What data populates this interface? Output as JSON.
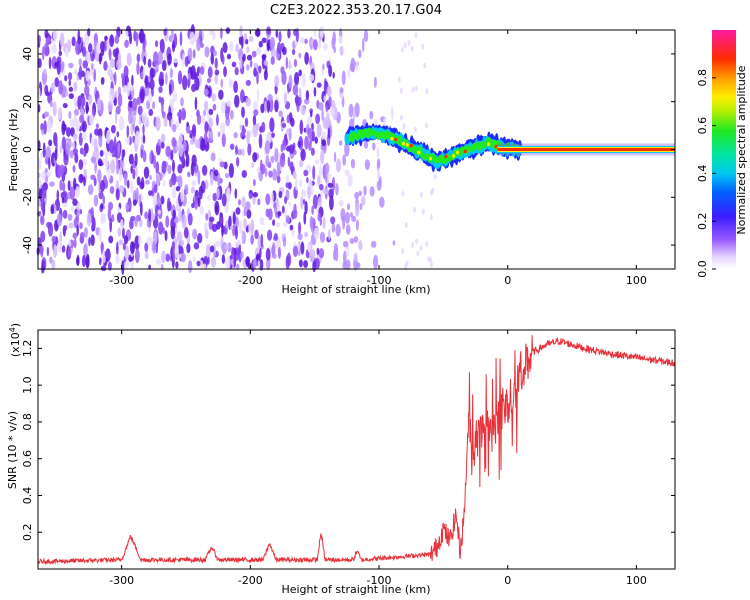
{
  "title": "C2E3.2022.353.20.17.G04",
  "chart_data": [
    {
      "type": "heatmap",
      "xlabel": "Height of straight line (km)",
      "ylabel": "Frequency (Hz)",
      "xlim": [
        -365,
        130
      ],
      "ylim": [
        -50,
        50
      ],
      "xticks": [
        -300,
        -200,
        -100,
        0,
        100
      ],
      "xtick_labels": [
        "-300",
        "-200",
        "-100",
        "0",
        "100"
      ],
      "yticks": [
        -40,
        -20,
        0,
        20,
        40
      ],
      "ytick_labels": [
        "-40",
        "-20",
        "0",
        "20",
        "40"
      ],
      "colorbar": {
        "label": "Normalized spectral amplitude",
        "range": [
          0,
          1
        ],
        "ticks": [
          0.0,
          0.2,
          0.4,
          0.6,
          0.8
        ],
        "tick_labels": [
          "0.0",
          "0.2",
          "0.4",
          "0.6",
          "0.8"
        ],
        "colormap": "rainbow (white-violet-blue-cyan-green-yellow-red-magenta)"
      },
      "noise_region_x": [
        -365,
        -85
      ],
      "ridge": {
        "x": [
          -125,
          -115,
          -105,
          -95,
          -85,
          -75,
          -65,
          -55,
          -45,
          -35,
          -25,
          -15,
          -5,
          5,
          15,
          130
        ],
        "freq": [
          5,
          6,
          7,
          6,
          4,
          1,
          -2,
          -5,
          -3,
          -1,
          1,
          3,
          1,
          0,
          0,
          0
        ]
      },
      "grid": false
    },
    {
      "type": "line",
      "xlabel": "Height of straight line (km)",
      "ylabel": "SNR (10 * v/v)",
      "y_scale_note": "(x10^4)",
      "y_scale_base": "(x10",
      "y_scale_exp": "4",
      "y_scale_close": ")",
      "xlim": [
        -365,
        130
      ],
      "ylim": [
        0,
        1.3
      ],
      "xticks": [
        -300,
        -200,
        -100,
        0,
        100
      ],
      "xtick_labels": [
        "-300",
        "-200",
        "-100",
        "0",
        "100"
      ],
      "yticks": [
        0.2,
        0.4,
        0.6,
        0.8,
        1.0,
        1.2
      ],
      "ytick_labels": [
        "0.2",
        "0.4",
        "0.6",
        "0.8",
        "1.0",
        "1.2"
      ],
      "series_color": "#e8323a",
      "envelope": {
        "x": [
          -365,
          -300,
          -293,
          -285,
          -235,
          -230,
          -225,
          -190,
          -185,
          -180,
          -148,
          -145,
          -142,
          -120,
          -117,
          -114,
          -60,
          -55,
          -50,
          -45,
          -40,
          -37,
          -34,
          -30,
          -28,
          -25,
          -20,
          -10,
          0,
          10,
          20,
          30,
          40,
          60,
          80,
          100,
          130
        ],
        "y": [
          0.04,
          0.05,
          0.18,
          0.05,
          0.05,
          0.12,
          0.05,
          0.05,
          0.14,
          0.05,
          0.05,
          0.2,
          0.05,
          0.05,
          0.1,
          0.05,
          0.08,
          0.12,
          0.22,
          0.15,
          0.3,
          0.1,
          0.28,
          0.85,
          0.6,
          0.7,
          0.75,
          0.8,
          0.9,
          1.05,
          1.18,
          1.22,
          1.24,
          1.2,
          1.17,
          1.15,
          1.12
        ]
      },
      "grid": false
    }
  ]
}
